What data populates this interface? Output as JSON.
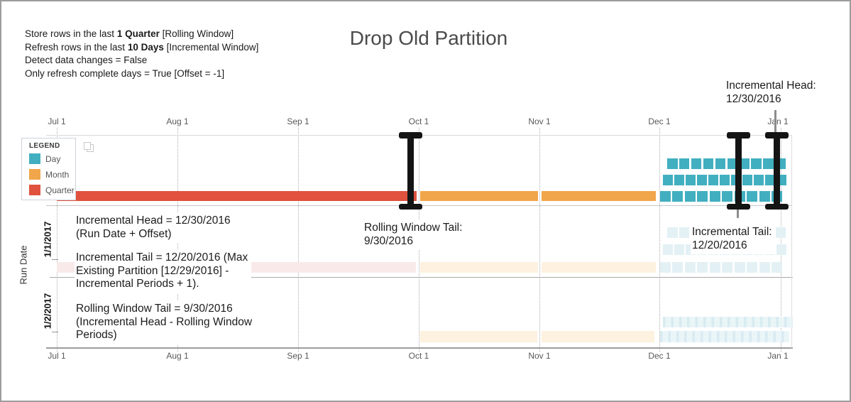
{
  "title": "Drop Old Partition",
  "config_lines": [
    {
      "parts": [
        {
          "text": "Store rows in the last "
        },
        {
          "text": "1 Quarter",
          "bold": true
        },
        {
          "text": " [Rolling Window]"
        }
      ]
    },
    {
      "parts": [
        {
          "text": "Refresh rows in the last "
        },
        {
          "text": "10 Days",
          "bold": true
        },
        {
          "text": " [Incremental Window]"
        }
      ]
    },
    {
      "parts": [
        {
          "text": "Detect data changes = False"
        }
      ]
    },
    {
      "parts": [
        {
          "text": "Only refresh complete days = True [Offset = -1]"
        }
      ]
    }
  ],
  "legend": {
    "title": "LEGEND",
    "items": [
      {
        "label": "Day",
        "color_key": "day"
      },
      {
        "label": "Month",
        "color_key": "month"
      },
      {
        "label": "Quarter",
        "color_key": "quarter"
      }
    ]
  },
  "axis": {
    "ticks": [
      "Jul 1",
      "Aug 1",
      "Sep 1",
      "Oct 1",
      "Nov 1",
      "Dec 1",
      "Jan 1"
    ],
    "run_date_label": "Run Date",
    "row_labels": [
      "1/1/2017",
      "1/2/2017"
    ]
  },
  "annotations": {
    "head_calc": {
      "lines": [
        "Incremental Head = 12/30/2016",
        "(Run Date + Offset)"
      ]
    },
    "tail_calc": {
      "lines": [
        "Incremental Tail = 12/20/2016 (Max",
        "Existing Partition [12/29/2016] -",
        "Incremental Periods + 1)."
      ]
    },
    "rolling_calc": {
      "lines": [
        "Rolling Window Tail = 9/30/2016",
        "(Incremental Head - Rolling Window",
        "Periods)"
      ]
    },
    "rolling_label": {
      "lines": [
        "Rolling Window Tail:",
        "9/30/2016"
      ]
    },
    "inc_tail_label": {
      "lines": [
        "Incremental Tail:",
        "12/20/2016"
      ]
    },
    "inc_head_label": {
      "lines": [
        "Incremental Head:",
        "12/30/2016"
      ]
    }
  },
  "colors": {
    "day": "#41AFC0",
    "month": "#F1A64B",
    "quarter": "#E0523E",
    "day_faded": "#e3f1f5",
    "month_faded": "#fdf1df",
    "quarter_faded": "#f9eaea",
    "day_stripe_dark": "#d8ebf2",
    "day_stripe_light": "#eaf5f8",
    "marker": "#141414",
    "pointer": "#8c8c8c"
  },
  "chart_data": {
    "type": "timeline",
    "title": "Drop Old Partition",
    "x_ticks": [
      "Jul 1",
      "Aug 1",
      "Sep 1",
      "Oct 1",
      "Nov 1",
      "Dec 1",
      "Jan 1"
    ],
    "y_axis_label": "Run Date",
    "granularity_legend": [
      "Day",
      "Month",
      "Quarter"
    ],
    "design_row": {
      "quarter_partitions": [
        {
          "from": "Jul 1",
          "to": "Oct 1"
        }
      ],
      "month_partitions": [
        {
          "from": "Oct 1",
          "to": "Nov 1"
        },
        {
          "from": "Nov 1",
          "to": "Dec 1"
        }
      ],
      "day_partitions": {
        "from": "Dec 1",
        "to": "Jan 1",
        "count": 31,
        "wrap_rows": [
          10,
          11,
          10
        ]
      }
    },
    "run_rows": [
      {
        "run_date": "1/1/2017",
        "faded": true,
        "quarter_partitions": [
          {
            "from": "Jul 1",
            "to": "Oct 1"
          }
        ],
        "month_partitions": [
          {
            "from": "Oct 1",
            "to": "Nov 1"
          },
          {
            "from": "Nov 1",
            "to": "Dec 1"
          }
        ],
        "day_partitions": {
          "from": "Dec 1",
          "count": 31,
          "wrap_rows": [
            10,
            11,
            10
          ]
        }
      },
      {
        "run_date": "1/2/2017",
        "faded": true,
        "quarter_partitions": [],
        "month_partitions": [
          {
            "from": "Oct 1",
            "to": "Nov 1"
          },
          {
            "from": "Nov 1",
            "to": "Dec 1"
          }
        ],
        "day_partitions": {
          "from": "Dec 1",
          "count": 32,
          "wrap_rows": [
            16,
            16
          ]
        }
      }
    ],
    "markers": [
      {
        "name": "rolling-window-tail",
        "date": "9/30/2016"
      },
      {
        "name": "incremental-tail",
        "date": "12/20/2016"
      },
      {
        "name": "incremental-head",
        "date": "12/30/2016"
      }
    ]
  }
}
